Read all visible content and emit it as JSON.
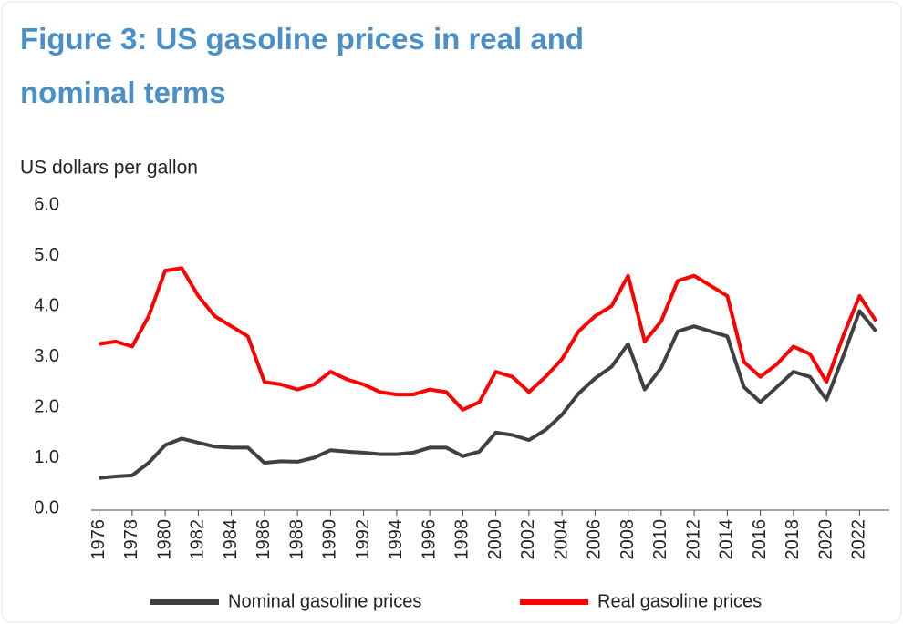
{
  "chart_data": {
    "type": "line",
    "title": "Figure 3: US gasoline prices in real and nominal terms",
    "y_label": "US dollars per gallon",
    "x": [
      1976,
      1977,
      1978,
      1979,
      1980,
      1981,
      1982,
      1983,
      1984,
      1985,
      1986,
      1987,
      1988,
      1989,
      1990,
      1991,
      1992,
      1993,
      1994,
      1995,
      1996,
      1997,
      1998,
      1999,
      2000,
      2001,
      2002,
      2003,
      2004,
      2005,
      2006,
      2007,
      2008,
      2009,
      2010,
      2011,
      2012,
      2013,
      2014,
      2015,
      2016,
      2017,
      2018,
      2019,
      2020,
      2021,
      2022,
      2023
    ],
    "series": [
      {
        "name": "Nominal gasoline prices",
        "color": "#404040",
        "values": [
          0.6,
          0.63,
          0.65,
          0.9,
          1.25,
          1.38,
          1.3,
          1.22,
          1.2,
          1.2,
          0.9,
          0.93,
          0.92,
          1.0,
          1.15,
          1.12,
          1.1,
          1.07,
          1.07,
          1.1,
          1.2,
          1.2,
          1.03,
          1.12,
          1.5,
          1.45,
          1.35,
          1.55,
          1.85,
          2.27,
          2.57,
          2.8,
          3.25,
          2.35,
          2.78,
          3.5,
          3.6,
          3.5,
          3.4,
          2.4,
          2.1,
          2.4,
          2.7,
          2.6,
          2.15,
          3.0,
          3.9,
          3.5
        ]
      },
      {
        "name": "Real gasoline prices",
        "color": "#ff0000",
        "values": [
          3.25,
          3.3,
          3.2,
          3.8,
          4.7,
          4.75,
          4.2,
          3.8,
          3.6,
          3.4,
          2.5,
          2.45,
          2.35,
          2.45,
          2.7,
          2.55,
          2.45,
          2.3,
          2.25,
          2.25,
          2.35,
          2.3,
          1.95,
          2.1,
          2.7,
          2.6,
          2.3,
          2.6,
          2.95,
          3.5,
          3.8,
          4.0,
          4.6,
          3.3,
          3.7,
          4.5,
          4.6,
          4.4,
          4.2,
          2.9,
          2.6,
          2.85,
          3.2,
          3.05,
          2.5,
          3.4,
          4.2,
          3.7
        ]
      }
    ],
    "xlim": [
      1975.8,
      2023.8
    ],
    "xticks": [
      1976,
      1978,
      1980,
      1982,
      1984,
      1986,
      1988,
      1990,
      1992,
      1994,
      1996,
      1998,
      2000,
      2002,
      2004,
      2006,
      2008,
      2010,
      2012,
      2014,
      2016,
      2018,
      2020,
      2022
    ],
    "ylim": [
      0,
      6
    ],
    "yticks": [
      {
        "value": 0,
        "label": "0.0"
      },
      {
        "value": 1,
        "label": "1.0"
      },
      {
        "value": 2,
        "label": "2.0"
      },
      {
        "value": 3,
        "label": "3.0"
      },
      {
        "value": 4,
        "label": "4.0"
      },
      {
        "value": 5,
        "label": "5.0"
      },
      {
        "value": 6,
        "label": "6.0"
      }
    ],
    "grid": false,
    "legend": "bottom"
  }
}
